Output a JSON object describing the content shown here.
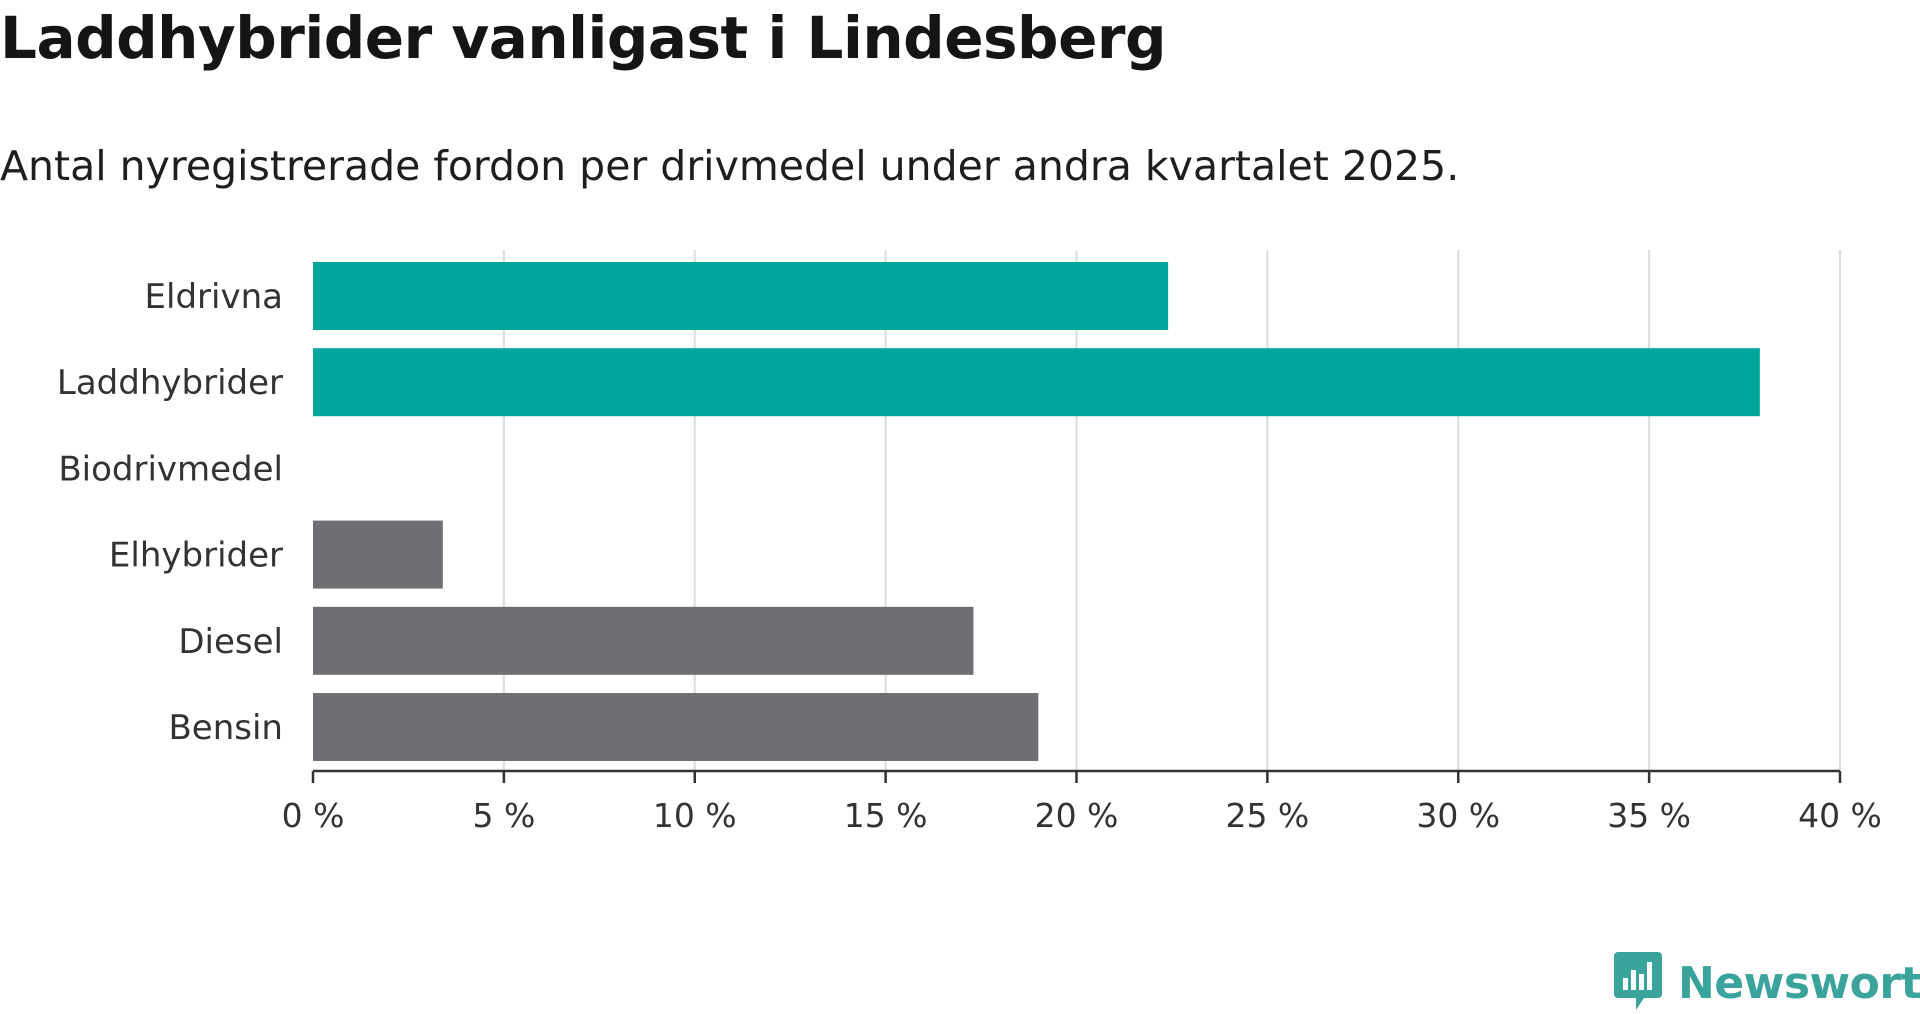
{
  "header": {
    "title": "Laddhybrider vanligast i Lindesberg",
    "subtitle": "Antal nyregistrerade fordon per drivmedel under andra kvartalet 2025."
  },
  "logo": {
    "text": "Newsworthy",
    "icon": "newsworthy-logo-icon",
    "color": "#3aa39c"
  },
  "chart_data": {
    "type": "bar",
    "orientation": "horizontal",
    "title": "Laddhybrider vanligast i Lindesberg",
    "subtitle": "Antal nyregistrerade fordon per drivmedel under andra kvartalet 2025.",
    "xlabel": "",
    "ylabel": "",
    "categories": [
      "Eldrivna",
      "Laddhybrider",
      "Biodrivmedel",
      "Elhybrider",
      "Diesel",
      "Bensin"
    ],
    "values": [
      22.4,
      37.9,
      0,
      3.4,
      17.3,
      19.0
    ],
    "unit": "%",
    "xlim": [
      0,
      40
    ],
    "xticks": [
      0,
      5,
      10,
      15,
      20,
      25,
      30,
      35,
      40
    ],
    "xtick_labels": [
      "0 %",
      "5 %",
      "10 %",
      "15 %",
      "20 %",
      "25 %",
      "30 %",
      "35 %",
      "40 %"
    ],
    "grid": true,
    "legend": "none",
    "colors": {
      "highlight": "#00a59c",
      "default": "#6e6e73",
      "grid": "#dcdcdc",
      "axis": "#333333"
    },
    "highlighted": [
      "Eldrivna",
      "Laddhybrider"
    ]
  }
}
